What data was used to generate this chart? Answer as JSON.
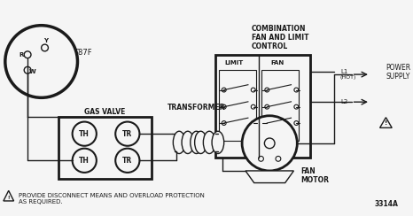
{
  "bg_color": "#f5f5f5",
  "line_color": "#1a1a1a",
  "thermostat_label": "T87F",
  "gas_valve_label": "GAS VALVE",
  "transformer_label": "TRANSFORMER",
  "combination_lines": [
    "COMBINATION",
    "FAN AND LIMIT",
    "CONTROL"
  ],
  "limit_label": "LIMIT",
  "fan_label": "FAN",
  "l1_label": "L1\n(HOT)",
  "l2_label": "L2",
  "power_supply_label": "POWER\nSUPPLY",
  "fan_motor_label": "FAN\nMOTOR",
  "warning_text": "PROVIDE DISCONNECT MEANS AND OVERLOAD PROTECTION\nAS REQUIRED.",
  "diagram_num": "3314A",
  "th_label": "TH",
  "tr_label": "TR"
}
